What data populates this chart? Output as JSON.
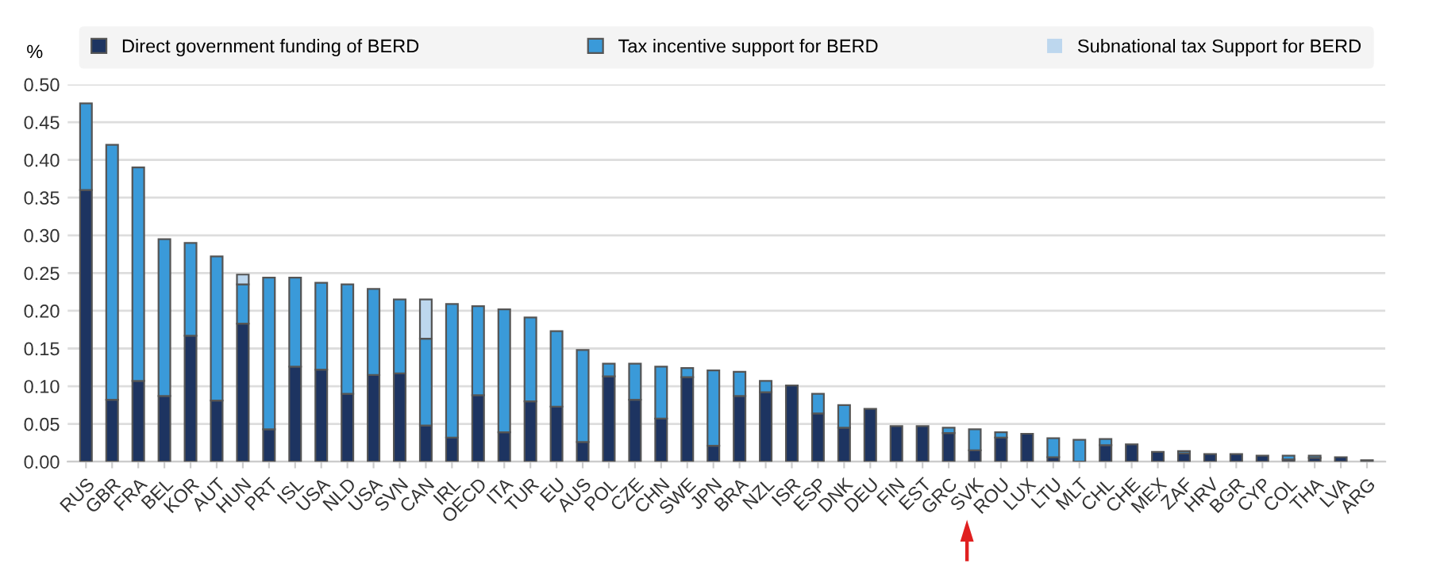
{
  "chart_data": {
    "type": "bar",
    "stacked": true,
    "ylabel": "%",
    "categories": [
      "RUS",
      "GBR",
      "FRA",
      "BEL",
      "KOR",
      "AUT",
      "HUN",
      "PRT",
      "ISL",
      "USA",
      "NLD",
      "USA",
      "SVN",
      "CAN",
      "IRL",
      "OECD",
      "ITA",
      "TUR",
      "EU",
      "AUS",
      "POL",
      "CZE",
      "CHN",
      "SWE",
      "JPN",
      "BRA",
      "NZL",
      "ISR",
      "ESP",
      "DNK",
      "DEU",
      "FIN",
      "EST",
      "GRC",
      "SVK",
      "ROU",
      "LUX",
      "LTU",
      "MLT",
      "CHL",
      "CHE",
      "MEX",
      "ZAF",
      "HRV",
      "BGR",
      "CYP",
      "COL",
      "THA",
      "LVA",
      "ARG"
    ],
    "series": [
      {
        "name": "Direct government funding of BERD",
        "color": "#1d3461",
        "values": [
          0.36,
          0.082,
          0.107,
          0.087,
          0.167,
          0.081,
          0.183,
          0.043,
          0.126,
          0.122,
          0.09,
          0.115,
          0.117,
          0.048,
          0.032,
          0.088,
          0.039,
          0.08,
          0.073,
          0.026,
          0.113,
          0.082,
          0.057,
          0.112,
          0.021,
          0.087,
          0.092,
          0.101,
          0.064,
          0.045,
          0.07,
          0.047,
          0.047,
          0.038,
          0.015,
          0.032,
          0.037,
          0.006,
          0,
          0.022,
          0.023,
          0.013,
          0.011,
          0.01,
          0.01,
          0.008,
          0.003,
          0.005,
          0.006,
          0.002
        ]
      },
      {
        "name": "Tax incentive support for BERD",
        "color": "#3a9ad9",
        "values": [
          0.115,
          0.338,
          0.283,
          0.208,
          0.123,
          0.191,
          0.052,
          0.201,
          0.118,
          0.115,
          0.145,
          0.114,
          0.098,
          0.115,
          0.177,
          0.118,
          0.163,
          0.111,
          0.1,
          0.122,
          0.017,
          0.048,
          0.069,
          0.012,
          0.1,
          0.032,
          0.015,
          0,
          0.026,
          0.03,
          0,
          0,
          0,
          0.007,
          0.028,
          0.007,
          0,
          0.025,
          0.029,
          0.008,
          0,
          0,
          0.003,
          0,
          0,
          0,
          0.005,
          0.003,
          0,
          0
        ]
      },
      {
        "name": "Subnational tax Support for BERD",
        "color": "#bdd7ee",
        "values": [
          0,
          0,
          0,
          0,
          0,
          0,
          0.013,
          0,
          0,
          0,
          0,
          0,
          0,
          0.052,
          0,
          0,
          0,
          0,
          0,
          0,
          0,
          0,
          0,
          0,
          0,
          0,
          0,
          0,
          0,
          0,
          0,
          0,
          0,
          0,
          0,
          0,
          0,
          0,
          0,
          0,
          0,
          0,
          0,
          0,
          0,
          0,
          0,
          0,
          0,
          0
        ]
      }
    ],
    "ylim": [
      0,
      0.5
    ],
    "yticks": [
      {
        "value": 0,
        "label": "0.00"
      },
      {
        "value": 0.05,
        "label": "0.05"
      },
      {
        "value": 0.1,
        "label": "0.10"
      },
      {
        "value": 0.15,
        "label": "0.15"
      },
      {
        "value": 0.2,
        "label": "0.20"
      },
      {
        "value": 0.25,
        "label": "0.25"
      },
      {
        "value": 0.3,
        "label": "0.30"
      },
      {
        "value": 0.35,
        "label": "0.35"
      },
      {
        "value": 0.4,
        "label": "0.40"
      },
      {
        "value": 0.45,
        "label": "0.45"
      },
      {
        "value": 0.5,
        "label": "0.50"
      }
    ],
    "grid": "y",
    "legend": "top"
  }
}
